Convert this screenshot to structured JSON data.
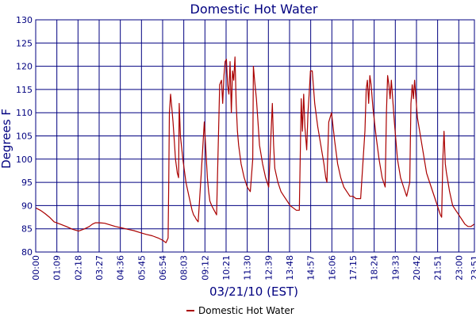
{
  "chart_data": {
    "type": "line",
    "title": "Domestic Hot Water",
    "xlabel": "03/21/10 (EST)",
    "ylabel": "Degrees F",
    "ylim": [
      80,
      130
    ],
    "yticks": [
      "80",
      "85",
      "90",
      "95",
      "100",
      "105",
      "110",
      "115",
      "120",
      "125",
      "130"
    ],
    "xlim_minutes": [
      0,
      1431
    ],
    "xticks": [
      "00:00",
      "01:09",
      "02:18",
      "03:27",
      "04:36",
      "05:45",
      "06:54",
      "08:03",
      "09:12",
      "10:21",
      "11:30",
      "12:39",
      "13:48",
      "14:57",
      "16:06",
      "17:15",
      "18:24",
      "19:33",
      "20:42",
      "21:51",
      "23:00",
      "23:51"
    ],
    "grid": true,
    "legend_position": "bottom-center",
    "colors": {
      "series": "#aa0000",
      "grid": "#000080",
      "text": "#000080"
    },
    "series": [
      {
        "name": "Domestic Hot Water",
        "x": [
          "00:00",
          "00:15",
          "00:30",
          "00:45",
          "01:00",
          "01:20",
          "01:40",
          "02:00",
          "02:20",
          "02:40",
          "02:55",
          "03:05",
          "03:15",
          "03:27",
          "03:45",
          "04:00",
          "04:20",
          "04:40",
          "05:00",
          "05:20",
          "05:40",
          "06:00",
          "06:20",
          "06:40",
          "06:55",
          "07:05",
          "07:12",
          "07:14",
          "07:16",
          "07:20",
          "07:24",
          "07:28",
          "07:32",
          "07:36",
          "07:42",
          "07:46",
          "07:48",
          "07:52",
          "08:00",
          "08:10",
          "08:20",
          "08:30",
          "08:35",
          "08:40",
          "08:44",
          "08:50",
          "09:00",
          "09:10",
          "09:20",
          "09:24",
          "09:28",
          "09:34",
          "09:42",
          "09:50",
          "10:00",
          "10:06",
          "10:10",
          "10:14",
          "10:18",
          "10:22",
          "10:26",
          "10:30",
          "10:34",
          "10:38",
          "10:42",
          "10:46",
          "10:50",
          "10:54",
          "10:58",
          "11:02",
          "11:10",
          "11:20",
          "11:30",
          "11:40",
          "11:48",
          "11:50",
          "11:54",
          "12:00",
          "12:05",
          "12:10",
          "12:20",
          "12:30",
          "12:40",
          "12:52",
          "12:56",
          "13:00",
          "13:10",
          "13:20",
          "13:30",
          "13:40",
          "13:50",
          "14:00",
          "14:10",
          "14:20",
          "14:26",
          "14:30",
          "14:34",
          "14:38",
          "14:44",
          "14:48",
          "14:52",
          "14:56",
          "15:02",
          "15:10",
          "15:20",
          "15:30",
          "15:40",
          "15:46",
          "15:50",
          "15:56",
          "16:05",
          "16:15",
          "16:25",
          "16:35",
          "16:45",
          "16:55",
          "17:05",
          "17:15",
          "17:25",
          "17:40",
          "17:50",
          "17:54",
          "17:58",
          "18:02",
          "18:06",
          "18:10",
          "18:14",
          "18:20",
          "18:30",
          "18:40",
          "18:50",
          "19:00",
          "19:04",
          "19:08",
          "19:12",
          "19:16",
          "19:20",
          "19:30",
          "19:40",
          "19:50",
          "20:00",
          "20:10",
          "20:20",
          "20:24",
          "20:28",
          "20:32",
          "20:36",
          "20:45",
          "21:00",
          "21:15",
          "21:30",
          "21:45",
          "21:55",
          "22:00",
          "22:04",
          "22:08",
          "22:12",
          "22:16",
          "22:20",
          "22:30",
          "22:40",
          "22:50",
          "23:00",
          "23:10",
          "23:20",
          "23:30",
          "23:40",
          "23:51"
        ],
        "y": [
          89.5,
          89,
          88.3,
          87.5,
          86.5,
          86,
          85.5,
          84.9,
          84.5,
          85,
          85.5,
          86,
          86.3,
          86.3,
          86.2,
          85.9,
          85.5,
          85.2,
          84.9,
          84.6,
          84.2,
          83.8,
          83.5,
          83,
          82.5,
          82,
          83,
          95,
          110,
          114,
          111,
          108,
          104,
          100,
          97,
          96,
          112,
          105,
          100,
          95,
          92,
          89,
          88,
          87.5,
          87,
          86.5,
          97,
          108,
          96,
          93,
          91,
          90,
          89,
          88,
          116,
          117,
          112,
          118,
          121,
          121.5,
          116,
          114,
          121,
          110,
          119,
          117,
          122,
          112,
          106,
          103,
          99,
          96,
          94,
          93,
          100,
          120,
          117,
          113,
          108,
          103,
          99,
          96,
          94,
          112,
          103,
          98,
          95,
          93,
          92,
          91,
          90,
          89.5,
          89,
          89,
          113,
          106,
          114,
          107,
          102,
          110,
          114,
          119,
          119,
          112,
          107,
          103,
          99,
          96,
          95,
          108,
          110,
          104,
          99,
          96,
          94,
          93,
          92,
          92,
          91.5,
          91.5,
          102,
          106,
          115,
          117,
          112,
          118,
          116,
          111,
          105,
          100,
          96,
          94,
          110,
          118,
          116,
          113,
          117,
          108,
          100,
          96,
          94,
          92,
          95,
          112,
          116,
          113,
          117,
          109,
          103,
          97,
          94,
          91,
          89,
          88,
          87.5,
          100,
          106,
          99,
          97,
          93,
          90,
          89,
          88,
          87,
          86,
          85.5,
          85.5,
          86
        ]
      }
    ]
  }
}
